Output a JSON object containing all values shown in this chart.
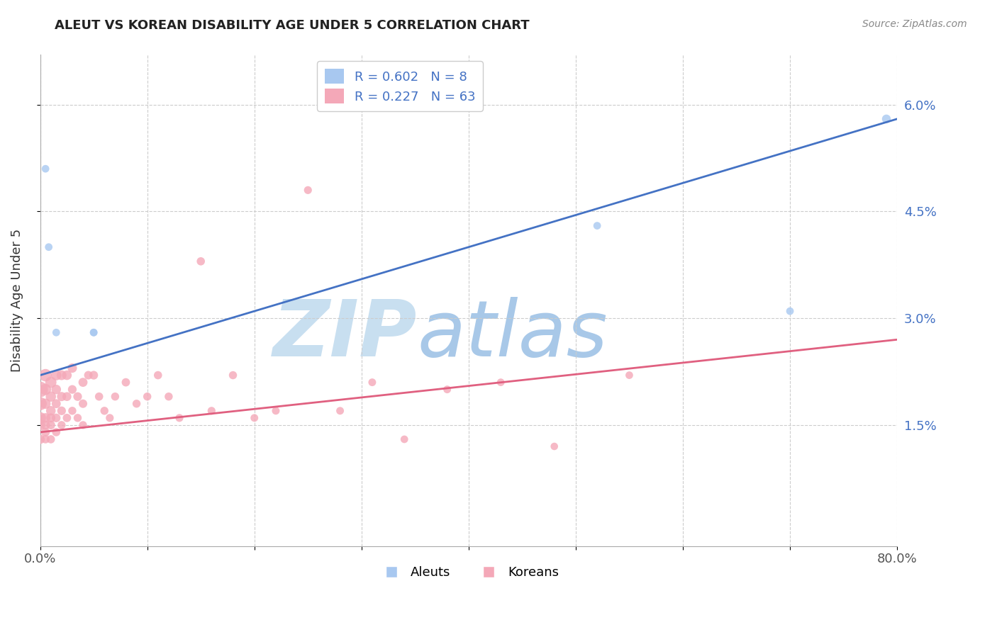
{
  "title": "ALEUT VS KOREAN DISABILITY AGE UNDER 5 CORRELATION CHART",
  "source": "Source: ZipAtlas.com",
  "ylabel": "Disability Age Under 5",
  "xlim": [
    0.0,
    0.8
  ],
  "ylim": [
    -0.002,
    0.067
  ],
  "xticks": [
    0.0,
    0.1,
    0.2,
    0.3,
    0.4,
    0.5,
    0.6,
    0.7,
    0.8
  ],
  "xtick_labels": [
    "0.0%",
    "",
    "",
    "",
    "",
    "",
    "",
    "",
    "80.0%"
  ],
  "yticks": [
    0.015,
    0.03,
    0.045,
    0.06
  ],
  "ytick_labels": [
    "1.5%",
    "3.0%",
    "4.5%",
    "6.0%"
  ],
  "aleut_R": 0.602,
  "aleut_N": 8,
  "korean_R": 0.227,
  "korean_N": 63,
  "aleut_color": "#a8c8f0",
  "korean_color": "#f4a8b8",
  "aleut_line_color": "#4472c4",
  "korean_line_color": "#e06080",
  "legend_text_color": "#4472c4",
  "aleut_line_x0": 0.0,
  "aleut_line_y0": 0.022,
  "aleut_line_x1": 0.8,
  "aleut_line_y1": 0.058,
  "korean_line_x0": 0.0,
  "korean_line_y0": 0.014,
  "korean_line_x1": 0.8,
  "korean_line_y1": 0.027,
  "aleut_x": [
    0.005,
    0.008,
    0.015,
    0.05,
    0.05,
    0.52,
    0.7,
    0.79
  ],
  "aleut_y": [
    0.051,
    0.04,
    0.028,
    0.028,
    0.028,
    0.043,
    0.031,
    0.058
  ],
  "aleut_sizes": [
    60,
    60,
    60,
    60,
    60,
    60,
    60,
    80
  ],
  "korean_x": [
    0.0,
    0.0,
    0.0,
    0.0,
    0.0,
    0.005,
    0.005,
    0.005,
    0.005,
    0.005,
    0.005,
    0.005,
    0.01,
    0.01,
    0.01,
    0.01,
    0.01,
    0.01,
    0.015,
    0.015,
    0.015,
    0.015,
    0.015,
    0.02,
    0.02,
    0.02,
    0.02,
    0.025,
    0.025,
    0.025,
    0.03,
    0.03,
    0.03,
    0.035,
    0.035,
    0.04,
    0.04,
    0.04,
    0.045,
    0.05,
    0.055,
    0.06,
    0.065,
    0.07,
    0.08,
    0.09,
    0.1,
    0.11,
    0.12,
    0.13,
    0.15,
    0.16,
    0.18,
    0.2,
    0.22,
    0.25,
    0.28,
    0.31,
    0.34,
    0.38,
    0.43,
    0.48,
    0.55
  ],
  "korean_y": [
    0.02,
    0.018,
    0.016,
    0.015,
    0.013,
    0.022,
    0.02,
    0.018,
    0.016,
    0.015,
    0.014,
    0.013,
    0.021,
    0.019,
    0.017,
    0.016,
    0.015,
    0.013,
    0.022,
    0.02,
    0.018,
    0.016,
    0.014,
    0.022,
    0.019,
    0.017,
    0.015,
    0.022,
    0.019,
    0.016,
    0.023,
    0.02,
    0.017,
    0.019,
    0.016,
    0.021,
    0.018,
    0.015,
    0.022,
    0.022,
    0.019,
    0.017,
    0.016,
    0.019,
    0.021,
    0.018,
    0.019,
    0.022,
    0.019,
    0.016,
    0.038,
    0.017,
    0.022,
    0.016,
    0.017,
    0.048,
    0.017,
    0.021,
    0.013,
    0.02,
    0.021,
    0.012,
    0.022
  ],
  "korean_sizes": [
    250,
    180,
    140,
    110,
    90,
    160,
    130,
    110,
    95,
    85,
    78,
    70,
    130,
    110,
    95,
    85,
    78,
    70,
    110,
    95,
    85,
    78,
    70,
    100,
    88,
    78,
    68,
    95,
    82,
    72,
    90,
    78,
    68,
    78,
    68,
    85,
    75,
    65,
    75,
    78,
    70,
    68,
    65,
    68,
    72,
    68,
    68,
    70,
    68,
    65,
    70,
    65,
    68,
    62,
    62,
    65,
    62,
    62,
    60,
    62,
    60,
    58,
    60
  ],
  "background_color": "#ffffff",
  "grid_color": "#cccccc",
  "watermark_zip": "ZIP",
  "watermark_atlas": "atlas",
  "watermark_color_zip": "#c8dff0",
  "watermark_color_atlas": "#a8c8e8"
}
